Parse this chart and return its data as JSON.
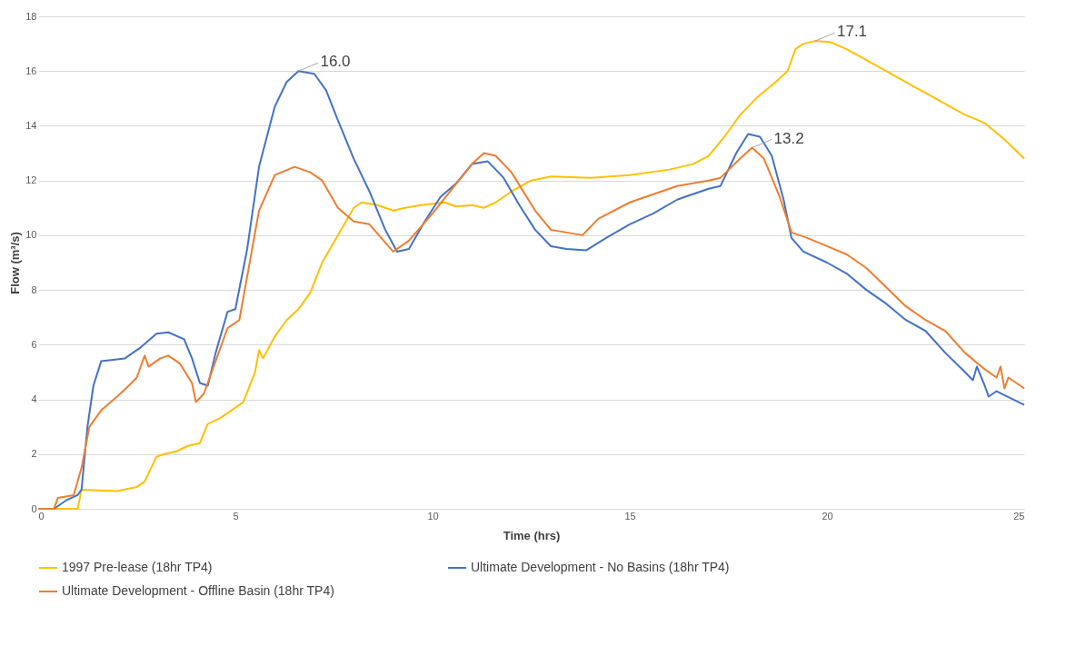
{
  "chart_data": {
    "type": "line",
    "xlabel": "Time (hrs)",
    "ylabel": "Flow (m³/s)",
    "xlim": [
      0,
      25
    ],
    "xticks": [
      0,
      5,
      10,
      15,
      20,
      25
    ],
    "ylim": [
      0,
      18
    ],
    "yticks": [
      0,
      2,
      4,
      6,
      8,
      10,
      12,
      14,
      16,
      18
    ],
    "grid": "y",
    "legend": "bottom",
    "line_style": "solid",
    "marker": "none",
    "annotations": [
      {
        "text": "16.0",
        "x": 6.6,
        "y": 16.0
      },
      {
        "text": "17.1",
        "x": 19.7,
        "y": 17.1
      },
      {
        "text": "13.2",
        "x": 18.1,
        "y": 13.2
      }
    ],
    "series": [
      {
        "name": "1997 Pre-lease (18hr TP4)",
        "color": "#ffc000",
        "x": [
          0,
          1.0,
          1.1,
          2.0,
          2.5,
          2.7,
          3.0,
          3.2,
          3.5,
          3.8,
          4.1,
          4.3,
          4.6,
          5.0,
          5.2,
          5.5,
          5.6,
          5.7,
          6.0,
          6.3,
          6.6,
          6.9,
          7.2,
          7.6,
          8.0,
          8.2,
          8.6,
          9.0,
          9.3,
          9.7,
          10.3,
          10.6,
          11.0,
          11.3,
          11.6,
          12.0,
          12.5,
          13.0,
          14.0,
          15.0,
          16.0,
          16.6,
          17.0,
          17.4,
          17.8,
          18.2,
          18.7,
          19.0,
          19.2,
          19.4,
          19.7,
          20.1,
          20.5,
          21.0,
          22.0,
          23.0,
          23.5,
          24.0,
          24.5,
          25.0
        ],
        "values": [
          0,
          0,
          0.7,
          0.65,
          0.8,
          1.0,
          1.9,
          2.0,
          2.1,
          2.3,
          2.4,
          3.1,
          3.3,
          3.7,
          3.9,
          5.0,
          5.8,
          5.5,
          6.3,
          6.9,
          7.3,
          7.9,
          9.0,
          10.0,
          11.0,
          11.2,
          11.1,
          10.9,
          11.0,
          11.1,
          11.2,
          11.05,
          11.1,
          11.0,
          11.2,
          11.6,
          12.0,
          12.15,
          12.1,
          12.2,
          12.4,
          12.6,
          12.9,
          13.6,
          14.4,
          15.0,
          15.6,
          16.0,
          16.8,
          17.0,
          17.1,
          17.05,
          16.8,
          16.4,
          15.6,
          14.8,
          14.4,
          14.1,
          13.5,
          12.8
        ]
      },
      {
        "name": "Ultimate Development - No Basins (18hr TP4)",
        "color": "#4472c4",
        "x": [
          0,
          0.4,
          0.7,
          1.0,
          1.1,
          1.25,
          1.4,
          1.6,
          1.9,
          2.2,
          2.6,
          3.0,
          3.3,
          3.7,
          3.9,
          4.1,
          4.3,
          4.5,
          4.8,
          5.0,
          5.3,
          5.6,
          6.0,
          6.3,
          6.6,
          7.0,
          7.3,
          7.6,
          8.0,
          8.4,
          8.8,
          9.1,
          9.4,
          9.8,
          10.2,
          10.6,
          11.0,
          11.4,
          11.8,
          12.2,
          12.6,
          13.0,
          13.4,
          13.9,
          14.4,
          15.0,
          15.6,
          16.2,
          17.0,
          17.3,
          17.7,
          18.0,
          18.3,
          18.6,
          18.9,
          19.1,
          19.4,
          20.0,
          20.5,
          21.0,
          21.5,
          22.0,
          22.5,
          23.0,
          23.5,
          23.7,
          23.8,
          24.0,
          24.1,
          24.3,
          25.0
        ],
        "values": [
          0,
          0,
          0.3,
          0.5,
          0.7,
          3.0,
          4.5,
          5.4,
          5.45,
          5.5,
          5.9,
          6.4,
          6.45,
          6.2,
          5.5,
          4.6,
          4.5,
          5.7,
          7.2,
          7.3,
          9.5,
          12.5,
          14.7,
          15.6,
          16.0,
          15.9,
          15.3,
          14.2,
          12.8,
          11.6,
          10.2,
          9.4,
          9.5,
          10.5,
          11.4,
          11.9,
          12.6,
          12.7,
          12.1,
          11.1,
          10.2,
          9.6,
          9.5,
          9.45,
          9.9,
          10.4,
          10.8,
          11.3,
          11.7,
          11.8,
          13.0,
          13.7,
          13.6,
          12.9,
          11.3,
          9.9,
          9.4,
          9.0,
          8.6,
          8.0,
          7.5,
          6.9,
          6.5,
          5.7,
          5.0,
          4.7,
          5.2,
          4.5,
          4.1,
          4.3,
          3.8
        ]
      },
      {
        "name": "Ultimate Development - Offline Basin (18hr TP4)",
        "color": "#ed7d31",
        "x": [
          0,
          0.4,
          0.5,
          0.9,
          1.1,
          1.3,
          1.6,
          2.0,
          2.3,
          2.5,
          2.7,
          2.8,
          3.1,
          3.3,
          3.6,
          3.9,
          4.0,
          4.2,
          4.5,
          4.8,
          5.1,
          5.3,
          5.6,
          6.0,
          6.5,
          6.9,
          7.2,
          7.6,
          8.0,
          8.4,
          8.7,
          9.0,
          9.4,
          10.0,
          10.5,
          11.0,
          11.3,
          11.6,
          12.0,
          12.6,
          13.0,
          13.4,
          13.8,
          14.2,
          15.0,
          15.6,
          16.2,
          17.0,
          17.3,
          17.8,
          18.1,
          18.4,
          18.8,
          19.1,
          19.5,
          20.0,
          20.5,
          21.0,
          22.0,
          22.5,
          23.0,
          23.5,
          24.0,
          24.3,
          24.4,
          24.5,
          24.6,
          25.0
        ],
        "values": [
          0,
          0,
          0.4,
          0.5,
          1.5,
          3.0,
          3.6,
          4.1,
          4.5,
          4.8,
          5.6,
          5.2,
          5.5,
          5.6,
          5.3,
          4.6,
          3.9,
          4.2,
          5.4,
          6.6,
          6.9,
          8.5,
          10.9,
          12.2,
          12.5,
          12.3,
          12.0,
          11.0,
          10.5,
          10.4,
          9.9,
          9.4,
          9.8,
          10.8,
          11.7,
          12.6,
          13.0,
          12.9,
          12.3,
          10.9,
          10.2,
          10.1,
          10.0,
          10.6,
          11.2,
          11.5,
          11.8,
          12.0,
          12.1,
          12.8,
          13.2,
          12.8,
          11.4,
          10.1,
          9.9,
          9.6,
          9.3,
          8.8,
          7.4,
          6.9,
          6.5,
          5.7,
          5.1,
          4.8,
          5.2,
          4.4,
          4.8,
          4.4
        ]
      }
    ]
  }
}
